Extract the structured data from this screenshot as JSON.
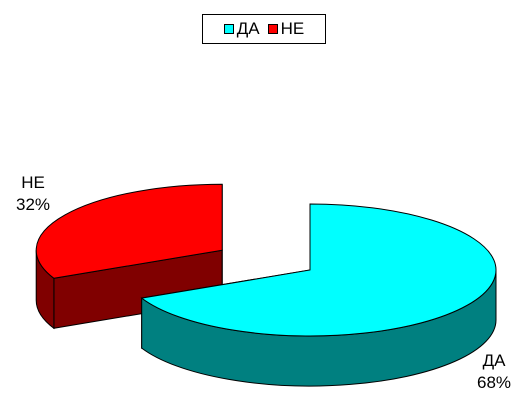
{
  "chart_data": {
    "type": "pie",
    "style": "3d-exploded",
    "categories": [
      "ДА",
      "НЕ"
    ],
    "values": [
      68,
      32
    ],
    "colors": [
      "#00ffff",
      "#ff0000"
    ],
    "shadow_colors": [
      "#008080",
      "#800000"
    ],
    "legend": {
      "position": "top",
      "entries": [
        "ДА",
        "НЕ"
      ]
    },
    "data_labels": [
      {
        "name": "ДА",
        "percent": "68%"
      },
      {
        "name": "НЕ",
        "percent": "32%"
      }
    ]
  }
}
